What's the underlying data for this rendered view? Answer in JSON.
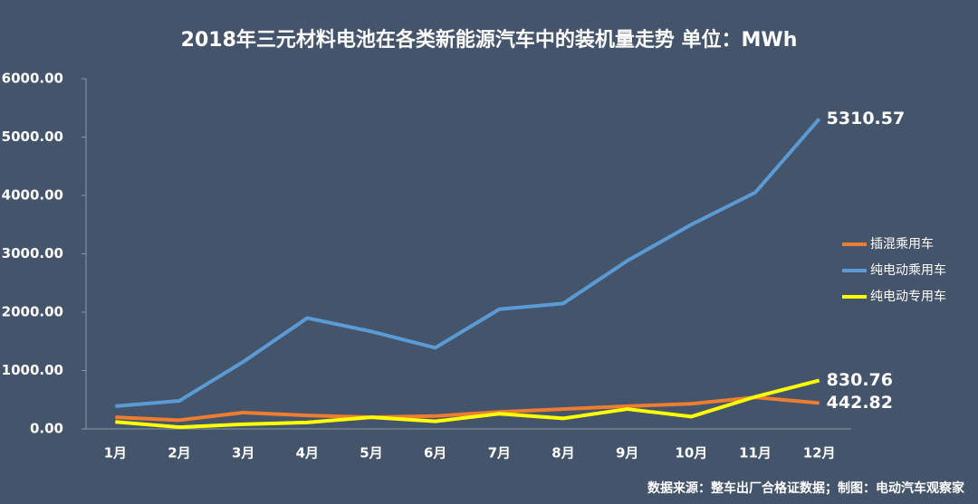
{
  "chart_data": {
    "type": "line",
    "title": "2018年三元材料电池在各类新能源汽车中的装机量走势  单位：MWh",
    "categories": [
      "1月",
      "2月",
      "3月",
      "4月",
      "5月",
      "6月",
      "7月",
      "8月",
      "9月",
      "10月",
      "11月",
      "12月"
    ],
    "series": [
      {
        "name": "插混乘用车",
        "color": "#ed7d31",
        "values": [
          200,
          150,
          280,
          230,
          200,
          220,
          290,
          340,
          390,
          430,
          540,
          442.82
        ],
        "value_labels": [
          null,
          null,
          null,
          null,
          null,
          null,
          null,
          null,
          null,
          null,
          null,
          "442.82"
        ]
      },
      {
        "name": "纯电动乘用车",
        "color": "#5b9bd5",
        "values": [
          390,
          480,
          1150,
          1900,
          1670,
          1390,
          2050,
          2150,
          2880,
          3500,
          4050,
          5310.57
        ],
        "value_labels": [
          null,
          null,
          null,
          null,
          null,
          null,
          null,
          null,
          null,
          null,
          null,
          "5310.57"
        ]
      },
      {
        "name": "纯电动专用车",
        "color": "#ffff00",
        "values": [
          120,
          30,
          80,
          110,
          200,
          130,
          260,
          180,
          340,
          210,
          550,
          830.76
        ],
        "value_labels": [
          null,
          null,
          null,
          null,
          null,
          null,
          null,
          null,
          null,
          null,
          null,
          "830.76"
        ]
      }
    ],
    "ylim": [
      0,
      6000
    ],
    "yticks": [
      {
        "value": 0,
        "label": "0.00"
      },
      {
        "value": 1000,
        "label": "1000.00"
      },
      {
        "value": 2000,
        "label": "2000.00"
      },
      {
        "value": 3000,
        "label": "3000.00"
      },
      {
        "value": 4000,
        "label": "4000.00"
      },
      {
        "value": 5000,
        "label": "5000.00"
      },
      {
        "value": 6000,
        "label": "6000.00"
      }
    ],
    "grid": false,
    "legend": "right",
    "source": "数据来源：整车出厂合格证数据；制图：电动汽车观察家"
  }
}
